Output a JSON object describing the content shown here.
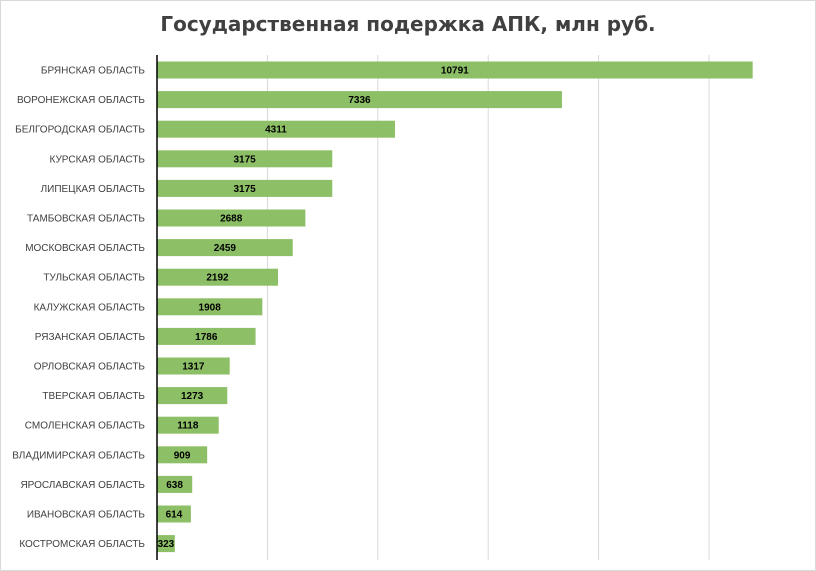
{
  "chart_data": {
    "type": "bar",
    "orientation": "horizontal",
    "title": "Государственная подержка АПК, млн руб.",
    "xlabel": "",
    "ylabel": "",
    "xlim": [
      0,
      12000
    ],
    "grid": true,
    "legend": "none",
    "bar_color": "#8cbf66",
    "categories": [
      "БРЯНСКАЯ ОБЛАСТЬ",
      "ВОРОНЕЖСКАЯ ОБЛАСТЬ",
      "БЕЛГОРОДСКАЯ ОБЛАСТЬ",
      "КУРСКАЯ ОБЛАСТЬ",
      "ЛИПЕЦКАЯ ОБЛАСТЬ",
      "ТАМБОВСКАЯ ОБЛАСТЬ",
      "МОСКОВСКАЯ ОБЛАСТЬ",
      "ТУЛЬСКАЯ ОБЛАСТЬ",
      "КАЛУЖСКАЯ ОБЛАСТЬ",
      "РЯЗАНСКАЯ ОБЛАСТЬ",
      "ОРЛОВСКАЯ ОБЛАСТЬ",
      "ТВЕРСКАЯ ОБЛАСТЬ",
      "СМОЛЕНСКАЯ ОБЛАСТЬ",
      "ВЛАДИМИРСКАЯ ОБЛАСТЬ",
      "ЯРОСЛАВСКАЯ ОБЛАСТЬ",
      "ИВАНОВСКАЯ ОБЛАСТЬ",
      "КОСТРОМСКАЯ ОБЛАСТЬ"
    ],
    "values": [
      10791,
      7336,
      4311,
      3175,
      3175,
      2688,
      2459,
      2192,
      1908,
      1786,
      1317,
      1273,
      1118,
      909,
      638,
      614,
      323
    ]
  }
}
